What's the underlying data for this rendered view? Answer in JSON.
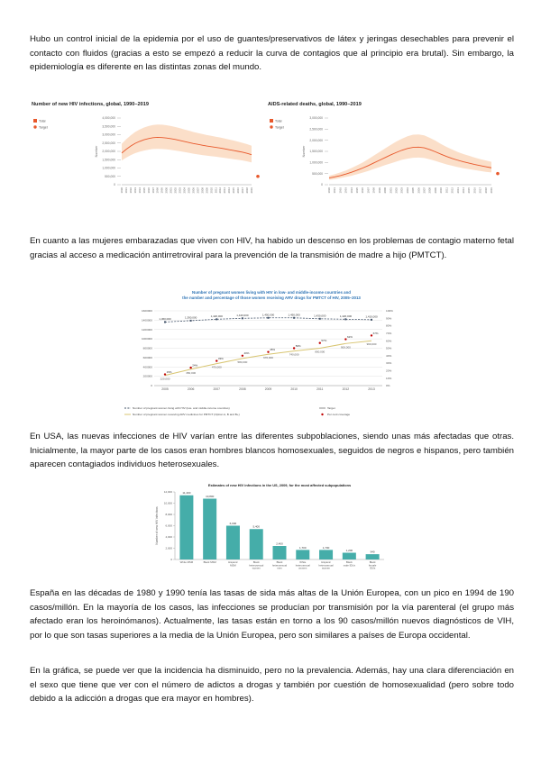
{
  "page": {
    "paragraphs": {
      "p1": "Hubo un control inicial de la epidemia por el uso de guantes/preservativos de látex y jeringas desechables para prevenir el contacto con fluidos (gracias a esto se empezó a reducir la curva de contagios que al principio era brutal). Sin embargo, la epidemiología es diferente en las distintas zonas del mundo.",
      "p2": "En cuanto a las mujeres embarazadas que viven con HIV, ha habido un descenso en los problemas de contagio materno fetal gracias al acceso a medicación antirretroviral para la prevención de la transmisión de madre a hijo (PMTCT).",
      "p3": "En USA, las nuevas infecciones de HIV varían entre las diferentes subpoblaciones, siendo unas más afectadas que otras. Inicialmente, la mayor parte de los casos eran hombres blancos homosexuales, seguidos de negros e hispanos, pero también aparecen contagiados individuos heterosexuales.",
      "p4": "España en las décadas de 1980 y 1990 tenía las tasas de sida más altas de la Unión Europea, con un pico en 1994 de 190 casos/millón. En la mayoría de los casos, las infecciones se producían por transmisión por la vía parenteral (el grupo más afectado eran los heroinómanos). Actualmente, las tasas están en torno a los 90 casos/millón nuevos diagnósticos de VIH, por lo que son tasas superiores a la media de la Unión Europea, pero son similares a países de Europa occidental.",
      "p5": "En la gráfica, se puede ver que la incidencia ha disminuido, pero no la prevalencia. Además, hay una clara diferenciación en el sexo que tiene que ver con el número de adictos a drogas y también por cuestión de homosexualidad (pero sobre todo debido a la adicción a drogas que era mayor en hombres)."
    }
  },
  "colors": {
    "orange": "#e8582b",
    "band": "#fbdfc9",
    "navy": "#44546a",
    "yellow": "#d8c571",
    "red": "#c00000",
    "blue_title": "#2e74b5",
    "teal": "#45ada9",
    "grid": "#d9d9d9",
    "axis": "#999999",
    "target_legend": "#7f7f7f"
  },
  "chart_data": [
    {
      "id": "new_hiv_infections",
      "type": "line",
      "title": "Number of new HIV infections, global, 1990–2019",
      "ylabel": "Number",
      "legend": [
        "Total",
        "Target"
      ],
      "x": [
        1990,
        1991,
        1992,
        1993,
        1994,
        1995,
        1996,
        1997,
        1998,
        1999,
        2000,
        2001,
        2002,
        2003,
        2004,
        2005,
        2006,
        2007,
        2008,
        2009,
        2010,
        2011,
        2012,
        2013,
        2014,
        2015,
        2016,
        2017,
        2018,
        2019
      ],
      "values": [
        1900000,
        2120000,
        2320000,
        2480000,
        2600000,
        2700000,
        2770000,
        2820000,
        2840000,
        2830000,
        2800000,
        2760000,
        2710000,
        2650000,
        2590000,
        2530000,
        2470000,
        2420000,
        2370000,
        2320000,
        2280000,
        2240000,
        2200000,
        2150000,
        2100000,
        2050000,
        2000000,
        1950000,
        1880000,
        1800000
      ],
      "upper": [
        2450000,
        2720000,
        2960000,
        3160000,
        3310000,
        3430000,
        3520000,
        3580000,
        3610000,
        3600000,
        3570000,
        3520000,
        3460000,
        3390000,
        3310000,
        3240000,
        3160000,
        3100000,
        3040000,
        2980000,
        2930000,
        2880000,
        2830000,
        2770000,
        2710000,
        2650000,
        2580000,
        2510000,
        2430000,
        2340000
      ],
      "lower": [
        1450000,
        1620000,
        1770000,
        1890000,
        1980000,
        2050000,
        2100000,
        2140000,
        2150000,
        2140000,
        2120000,
        2090000,
        2050000,
        2010000,
        1960000,
        1910000,
        1860000,
        1820000,
        1780000,
        1740000,
        1710000,
        1680000,
        1640000,
        1610000,
        1570000,
        1530000,
        1490000,
        1450000,
        1400000,
        1340000
      ],
      "target": 500000,
      "ylim": [
        0,
        4000000
      ],
      "ystep": 500000,
      "grid": false,
      "legend_position": "top-left"
    },
    {
      "id": "aids_related_deaths",
      "type": "line",
      "title": "AIDS-related deaths, global, 1990–2019",
      "ylabel": "Number",
      "legend": [
        "Total",
        "Target"
      ],
      "x": [
        1990,
        1991,
        1992,
        1993,
        1994,
        1995,
        1996,
        1997,
        1998,
        1999,
        2000,
        2001,
        2002,
        2003,
        2004,
        2005,
        2006,
        2007,
        2008,
        2009,
        2010,
        2011,
        2012,
        2013,
        2014,
        2015,
        2016,
        2017,
        2018,
        2019
      ],
      "values": [
        300000,
        350000,
        410000,
        480000,
        560000,
        650000,
        750000,
        860000,
        980000,
        1100000,
        1220000,
        1340000,
        1450000,
        1550000,
        1630000,
        1680000,
        1690000,
        1660000,
        1580000,
        1480000,
        1370000,
        1270000,
        1180000,
        1100000,
        1030000,
        970000,
        910000,
        860000,
        810000,
        760000
      ],
      "upper": [
        400000,
        470000,
        550000,
        640000,
        750000,
        870000,
        1000000,
        1150000,
        1310000,
        1470000,
        1630000,
        1790000,
        1940000,
        2070000,
        2180000,
        2250000,
        2260000,
        2220000,
        2110000,
        1980000,
        1830000,
        1700000,
        1580000,
        1470000,
        1380000,
        1300000,
        1220000,
        1150000,
        1090000,
        1030000
      ],
      "lower": [
        220000,
        250000,
        300000,
        350000,
        400000,
        470000,
        540000,
        620000,
        710000,
        790000,
        880000,
        960000,
        1040000,
        1120000,
        1170000,
        1210000,
        1220000,
        1200000,
        1140000,
        1070000,
        990000,
        910000,
        850000,
        790000,
        740000,
        700000,
        660000,
        620000,
        580000,
        550000
      ],
      "target": 500000,
      "ylim": [
        0,
        3000000
      ],
      "ystep": 500000,
      "grid": false,
      "legend_position": "top-left"
    },
    {
      "id": "pmtct_coverage",
      "type": "line",
      "title": "Number of pregnant women living with HIV in low- and middle-income countries and the number and percentage of those women receiving ARV drugs for PMTCT of HIV, 2005–2013",
      "title_lines": [
        "Number of pregnant women living with HIV in low- and middle-income countries and",
        "the number and percentage of those women receiving ARV drugs for PMTCT of HIV, 2005–2013"
      ],
      "x": [
        2005,
        2006,
        2007,
        2008,
        2009,
        2010,
        2011,
        2012,
        2013
      ],
      "series": [
        {
          "name": "Number of pregnant women living with HIV (low- and middle-income countries)",
          "values": [
            1360000,
            1390000,
            1420000,
            1440000,
            1450000,
            1450000,
            1430000,
            1420000,
            1410000
          ],
          "labels": [
            "1,360,000",
            "1,390,000",
            "1,420,000",
            "1,440,000",
            "1,450,000",
            "1,450,000",
            "1,430,000",
            "1,420,000",
            "1,410,000"
          ]
        },
        {
          "name": "Number of pregnant women receiving ARV medicines for PMTCT (Option A, B and B+)",
          "values": [
            220000,
            350000,
            470000,
            580000,
            670000,
            740000,
            800000,
            900000,
            960000
          ],
          "labels": [
            "220,000",
            "350,000",
            "470,000",
            "580,000",
            "670,000",
            "740,000",
            "800,000",
            "900,000",
            "960,000"
          ]
        },
        {
          "name": "Per cent coverage",
          "values_percent": [
            15,
            24,
            33,
            40,
            45,
            50,
            57,
            62,
            67
          ],
          "labels": [
            "15%",
            "24%",
            "33%",
            "40%",
            "45%",
            "50%",
            "57%",
            "62%",
            "67%"
          ]
        }
      ],
      "legend": [
        "Number of pregnant women living with HIV (low- and middle-income countries)",
        "Number of pregnant women receiving ARV medicines for PMTCT (Option A, B and B+)",
        "Target",
        "Per cent coverage"
      ],
      "ylim_left": [
        0,
        1600000
      ],
      "ystep_left": 200000,
      "ylim_right": [
        0,
        100
      ],
      "ystep_right": 10,
      "grid": true,
      "legend_position": "bottom"
    },
    {
      "id": "us_new_infections_subpopulations",
      "type": "bar",
      "title": "Estimates of new HIV infections in the US, 2009, for the most affected subpopulations",
      "ylabel": "Number of new HIV infections",
      "categories": [
        "White MSM",
        "Black MSM",
        "Hispanic MSM",
        "Black heterosexual women",
        "Black heterosexual men",
        "White heterosexual women",
        "Hispanic heterosexual women",
        "Black male IDUs",
        "Black female IDUs"
      ],
      "values": [
        11400,
        10800,
        6000,
        5400,
        2400,
        1700,
        1700,
        1200,
        940
      ],
      "labels": [
        "11,400",
        "10,800",
        "6,000",
        "5,400",
        "2,400",
        "1,700",
        "1,700",
        "1,200",
        "940"
      ],
      "ylim": [
        0,
        12000
      ],
      "ystep": 2000,
      "grid": false,
      "legend_position": "none"
    }
  ]
}
